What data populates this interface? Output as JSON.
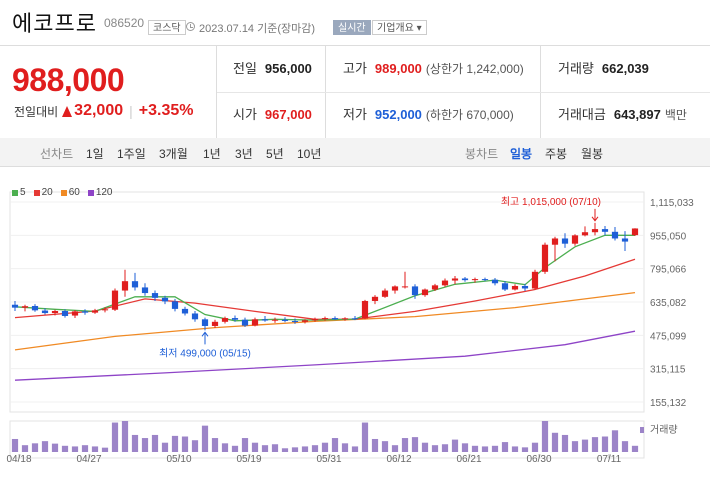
{
  "header": {
    "name": "에코프로",
    "code": "086520",
    "market": "코스닥",
    "date": "2023.07.14 기준(장마감)",
    "realtime": "실시간",
    "overview": "기업개요 ▾"
  },
  "price": {
    "current": "988,000",
    "change_label": "전일대비",
    "change": "32,000",
    "pct": "+3.35%"
  },
  "stats": {
    "prev_label": "전일",
    "prev": "956,000",
    "high_label": "고가",
    "high": "989,000",
    "high_sub": "(상한가 1,242,000)",
    "vol_label": "거래량",
    "vol": "662,039",
    "open_label": "시가",
    "open": "967,000",
    "low_label": "저가",
    "low": "952,000",
    "low_sub": "(하한가 670,000)",
    "amt_label": "거래대금",
    "amt": "643,897",
    "amt_unit": "백만"
  },
  "tabs": {
    "line_label": "선차트",
    "line_items": [
      "1일",
      "1주일",
      "3개월",
      "1년",
      "3년",
      "5년",
      "10년"
    ],
    "candle_label": "봉차트",
    "candle_items": [
      "일봉",
      "주봉",
      "월봉"
    ],
    "candle_active": "일봉"
  },
  "colors": {
    "up": "#e01e1e",
    "down": "#1e5fd7",
    "ma5": "#4caf50",
    "ma20": "#e53935",
    "ma60": "#f08a24",
    "ma120": "#8e44c7",
    "volume": "#9c84c8"
  },
  "chart_data": {
    "type": "candlestick",
    "legend": [
      "5",
      "20",
      "60",
      "120"
    ],
    "y_ticks": [
      "1,115,033",
      "955,050",
      "795,066",
      "635,082",
      "475,099",
      "315,115",
      "155,132"
    ],
    "ylim": [
      155132,
      1115033
    ],
    "x_ticks": [
      "04/18",
      "04/27",
      "05/10",
      "05/19",
      "05/31",
      "06/12",
      "06/21",
      "06/30",
      "07/11"
    ],
    "high_annotation": "최고 1,015,000 (07/10)",
    "low_annotation": "최저 499,000 (05/15)",
    "volume_label": "거래량",
    "candles": [
      [
        622000,
        640000,
        592000,
        608000
      ],
      [
        608000,
        622000,
        590000,
        615000
      ],
      [
        616000,
        625000,
        588000,
        595000
      ],
      [
        594000,
        605000,
        575000,
        582000
      ],
      [
        582000,
        598000,
        570000,
        592000
      ],
      [
        592000,
        600000,
        560000,
        568000
      ],
      [
        570000,
        596000,
        558000,
        590000
      ],
      [
        590000,
        600000,
        574000,
        584000
      ],
      [
        584000,
        602000,
        578000,
        595000
      ],
      [
        595000,
        610000,
        585000,
        600000
      ],
      [
        598000,
        700000,
        592000,
        690000
      ],
      [
        690000,
        790000,
        660000,
        735000
      ],
      [
        735000,
        775000,
        690000,
        705000
      ],
      [
        705000,
        725000,
        665000,
        678000
      ],
      [
        678000,
        690000,
        640000,
        655000
      ],
      [
        655000,
        665000,
        625000,
        638000
      ],
      [
        638000,
        650000,
        590000,
        602000
      ],
      [
        602000,
        612000,
        570000,
        580000
      ],
      [
        580000,
        592000,
        540000,
        552000
      ],
      [
        552000,
        560000,
        499000,
        520000
      ],
      [
        520000,
        550000,
        510000,
        540000
      ],
      [
        540000,
        565000,
        532000,
        558000
      ],
      [
        558000,
        570000,
        540000,
        550000
      ],
      [
        550000,
        560000,
        515000,
        522000
      ],
      [
        522000,
        560000,
        518000,
        552000
      ],
      [
        552000,
        568000,
        540000,
        546000
      ],
      [
        546000,
        560000,
        535000,
        550000
      ],
      [
        550000,
        562000,
        538000,
        544000
      ],
      [
        544000,
        556000,
        530000,
        540000
      ],
      [
        540000,
        552000,
        532000,
        547000
      ],
      [
        547000,
        560000,
        540000,
        553000
      ],
      [
        553000,
        565000,
        545000,
        558000
      ],
      [
        558000,
        566000,
        548000,
        552000
      ],
      [
        552000,
        562000,
        545000,
        557000
      ],
      [
        557000,
        568000,
        548000,
        556000
      ],
      [
        556000,
        645000,
        552000,
        640000
      ],
      [
        640000,
        668000,
        625000,
        660000
      ],
      [
        660000,
        700000,
        655000,
        690000
      ],
      [
        690000,
        715000,
        675000,
        710000
      ],
      [
        710000,
        780000,
        700000,
        710000
      ],
      [
        710000,
        720000,
        650000,
        668000
      ],
      [
        668000,
        700000,
        660000,
        695000
      ],
      [
        695000,
        722000,
        688000,
        715000
      ],
      [
        715000,
        748000,
        708000,
        738000
      ],
      [
        738000,
        760000,
        720000,
        748000
      ],
      [
        748000,
        755000,
        732000,
        740000
      ],
      [
        740000,
        752000,
        728000,
        745000
      ],
      [
        745000,
        752000,
        735000,
        742000
      ],
      [
        742000,
        750000,
        715000,
        725000
      ],
      [
        725000,
        735000,
        688000,
        695000
      ],
      [
        695000,
        720000,
        690000,
        712000
      ],
      [
        712000,
        722000,
        688000,
        700000
      ],
      [
        700000,
        790000,
        695000,
        780000
      ],
      [
        780000,
        920000,
        770000,
        910000
      ],
      [
        910000,
        948000,
        830000,
        940000
      ],
      [
        940000,
        965000,
        895000,
        915000
      ],
      [
        915000,
        960000,
        905000,
        955000
      ],
      [
        955000,
        998000,
        950000,
        970000
      ],
      [
        970000,
        1015000,
        955000,
        985000
      ],
      [
        985000,
        1000000,
        955000,
        972000
      ],
      [
        972000,
        995000,
        930000,
        940000
      ],
      [
        940000,
        975000,
        880000,
        925000
      ],
      [
        956000,
        989000,
        952000,
        988000
      ]
    ],
    "ma5": [
      [
        0,
        612000
      ],
      [
        4,
        600000
      ],
      [
        8,
        590000
      ],
      [
        12,
        660000
      ],
      [
        16,
        660000
      ],
      [
        19,
        575000
      ],
      [
        22,
        545000
      ],
      [
        26,
        552000
      ],
      [
        30,
        548000
      ],
      [
        34,
        553000
      ],
      [
        36,
        590000
      ],
      [
        40,
        665000
      ],
      [
        44,
        720000
      ],
      [
        48,
        740000
      ],
      [
        51,
        718000
      ],
      [
        53,
        800000
      ],
      [
        56,
        900000
      ],
      [
        59,
        955000
      ],
      [
        62,
        955000
      ]
    ],
    "ma20": [
      [
        0,
        560000
      ],
      [
        8,
        592000
      ],
      [
        13,
        650000
      ],
      [
        18,
        630000
      ],
      [
        24,
        590000
      ],
      [
        30,
        552000
      ],
      [
        34,
        553000
      ],
      [
        40,
        590000
      ],
      [
        46,
        640000
      ],
      [
        52,
        695000
      ],
      [
        57,
        760000
      ],
      [
        62,
        840000
      ]
    ],
    "ma60": [
      [
        0,
        405000
      ],
      [
        10,
        470000
      ],
      [
        20,
        512000
      ],
      [
        30,
        542000
      ],
      [
        40,
        565000
      ],
      [
        50,
        608000
      ],
      [
        62,
        680000
      ]
    ],
    "ma120": [
      [
        0,
        260000
      ],
      [
        15,
        295000
      ],
      [
        30,
        333000
      ],
      [
        45,
        375000
      ],
      [
        55,
        430000
      ],
      [
        62,
        495000
      ]
    ],
    "volume": [
      0.42,
      0.22,
      0.28,
      0.35,
      0.27,
      0.2,
      0.18,
      0.22,
      0.18,
      0.14,
      0.95,
      1.0,
      0.55,
      0.45,
      0.55,
      0.3,
      0.52,
      0.5,
      0.38,
      0.85,
      0.45,
      0.28,
      0.2,
      0.45,
      0.3,
      0.22,
      0.25,
      0.12,
      0.15,
      0.18,
      0.22,
      0.3,
      0.45,
      0.28,
      0.18,
      0.95,
      0.42,
      0.35,
      0.22,
      0.45,
      0.48,
      0.3,
      0.22,
      0.25,
      0.4,
      0.28,
      0.2,
      0.18,
      0.2,
      0.32,
      0.18,
      0.15,
      0.3,
      1.0,
      0.62,
      0.55,
      0.35,
      0.4,
      0.48,
      0.5,
      0.7,
      0.35,
      0.2
    ]
  }
}
